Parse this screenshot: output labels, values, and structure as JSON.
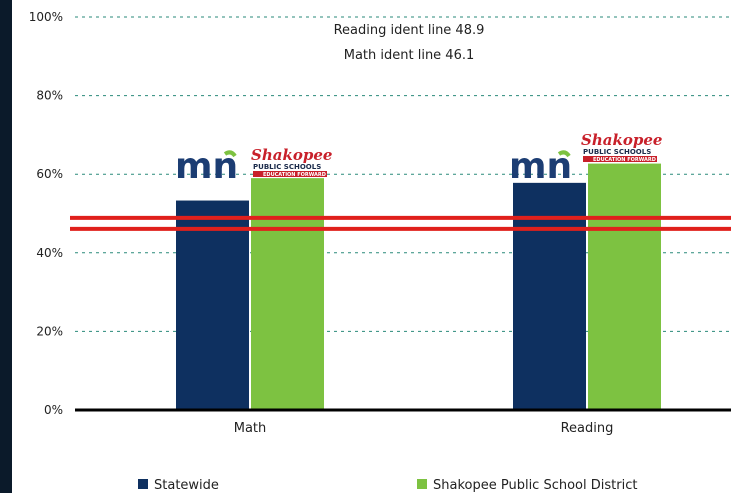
{
  "chart_data": {
    "type": "bar",
    "categories": [
      "Math",
      "Reading"
    ],
    "series": [
      {
        "name": "Statewide",
        "values": [
          53.3,
          57.8
        ],
        "color": "#0e3060"
      },
      {
        "name": "Shakopee Public School District",
        "values": [
          59.0,
          62.7
        ],
        "color": "#7dc241"
      }
    ],
    "ylim": [
      0,
      100
    ],
    "yticks": [
      0,
      20,
      40,
      60,
      80,
      100
    ],
    "ytick_labels": [
      "0%",
      "20%",
      "40%",
      "60%",
      "80%",
      "100%"
    ],
    "grid": true,
    "legend_position": "bottom",
    "reference_lines": [
      {
        "value": 48.9,
        "color": "#e0201c"
      },
      {
        "value": 46.1,
        "color": "#e0201c"
      }
    ],
    "annotations": [
      "Reading ident line 48.9",
      "Math ident line 46.1"
    ]
  },
  "logos": {
    "mn_text": "mn",
    "shakopee_text": "Shakopee",
    "public_schools_text": "PUBLIC SCHOOLS",
    "education_forward_text": "EDUCATION FORWARD",
    "mn_blue": "#1c3d73",
    "mn_green": "#7dc241",
    "shakopee_red": "#c8202a"
  }
}
